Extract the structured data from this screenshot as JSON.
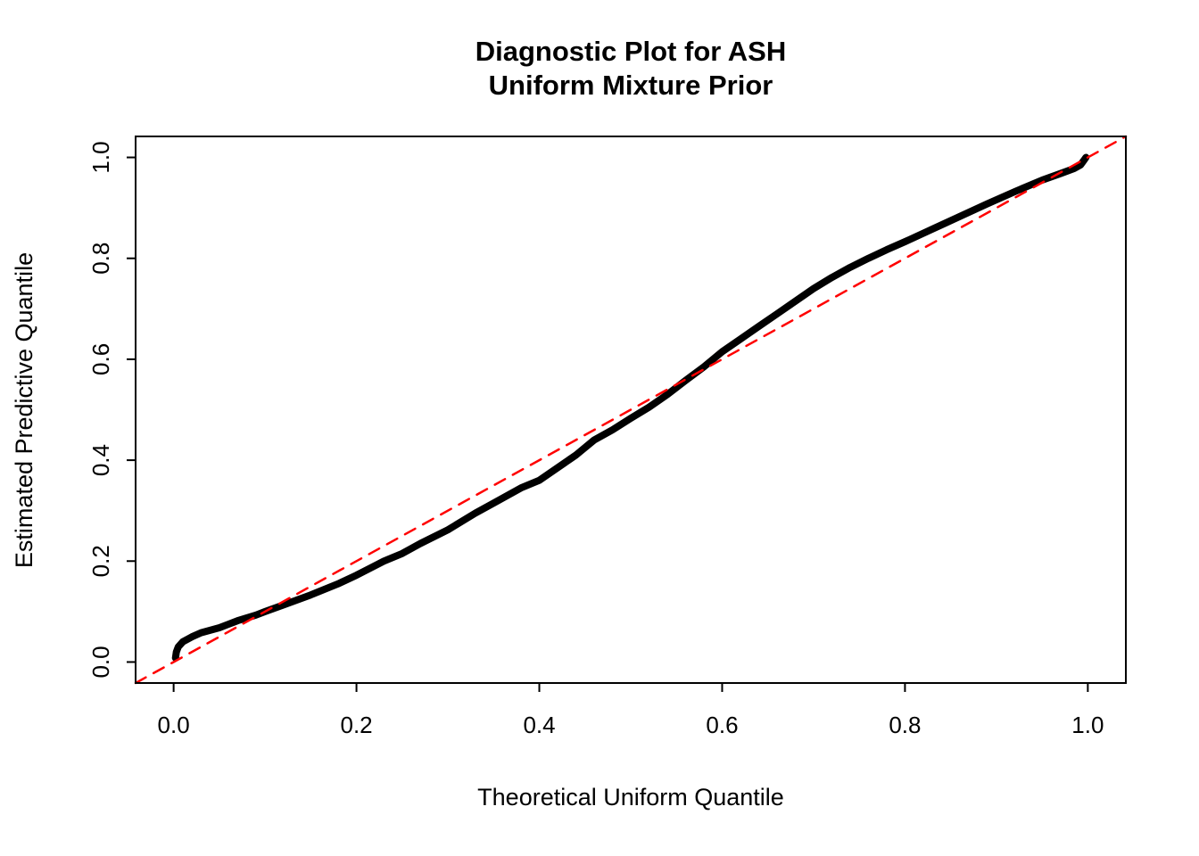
{
  "title": {
    "line1": "Diagnostic Plot for ASH",
    "line2": "Uniform Mixture Prior"
  },
  "axes": {
    "x_label": "Theoretical Uniform Quantile",
    "y_label": "Estimated Predictive Quantile"
  },
  "colors": {
    "curve": "#000000",
    "reference_line": "#FF0000",
    "frame": "#000000"
  },
  "chart_data": {
    "type": "line",
    "title": "Diagnostic Plot for ASH\nUniform Mixture Prior",
    "xlabel": "Theoretical Uniform Quantile",
    "ylabel": "Estimated Predictive Quantile",
    "xlim": [
      -0.0416,
      1.0416
    ],
    "ylim": [
      -0.0416,
      1.0416
    ],
    "grid": false,
    "legend": "none",
    "x_ticks": [
      0.0,
      0.2,
      0.4,
      0.6,
      0.8,
      1.0
    ],
    "x_tick_labels": [
      "0.0",
      "0.2",
      "0.4",
      "0.6",
      "0.8",
      "1.0"
    ],
    "y_ticks": [
      0.0,
      0.2,
      0.4,
      0.6,
      0.8,
      1.0
    ],
    "y_tick_labels": [
      "0.0",
      "0.2",
      "0.4",
      "0.6",
      "0.8",
      "1.0"
    ],
    "series": [
      {
        "name": "qq-curve",
        "label": "Estimated predictive quantiles vs theoretical uniform quantiles",
        "color": "#000000",
        "width": 8,
        "dash": "",
        "x": [
          0.002,
          0.003,
          0.005,
          0.01,
          0.02,
          0.03,
          0.05,
          0.07,
          0.09,
          0.1,
          0.12,
          0.15,
          0.18,
          0.2,
          0.23,
          0.25,
          0.27,
          0.3,
          0.33,
          0.35,
          0.38,
          0.4,
          0.42,
          0.44,
          0.46,
          0.48,
          0.5,
          0.52,
          0.54,
          0.56,
          0.58,
          0.6,
          0.62,
          0.64,
          0.66,
          0.68,
          0.7,
          0.72,
          0.74,
          0.76,
          0.78,
          0.8,
          0.83,
          0.86,
          0.89,
          0.92,
          0.95,
          0.97,
          0.985,
          0.992,
          0.996,
          0.998
        ],
        "y": [
          0.008,
          0.02,
          0.03,
          0.04,
          0.05,
          0.058,
          0.068,
          0.082,
          0.093,
          0.1,
          0.113,
          0.133,
          0.155,
          0.172,
          0.2,
          0.215,
          0.235,
          0.262,
          0.295,
          0.315,
          0.345,
          0.36,
          0.385,
          0.41,
          0.44,
          0.46,
          0.483,
          0.505,
          0.53,
          0.558,
          0.585,
          0.615,
          0.64,
          0.665,
          0.69,
          0.715,
          0.74,
          0.762,
          0.782,
          0.8,
          0.817,
          0.833,
          0.858,
          0.883,
          0.908,
          0.932,
          0.955,
          0.968,
          0.978,
          0.985,
          0.995,
          1.0
        ]
      },
      {
        "name": "reference-line",
        "label": "y = x reference (dashed red)",
        "color": "#FF0000",
        "width": 2.5,
        "dash": "13 10",
        "x": [
          -0.0416,
          1.0416
        ],
        "y": [
          -0.0416,
          1.0416
        ]
      }
    ]
  }
}
